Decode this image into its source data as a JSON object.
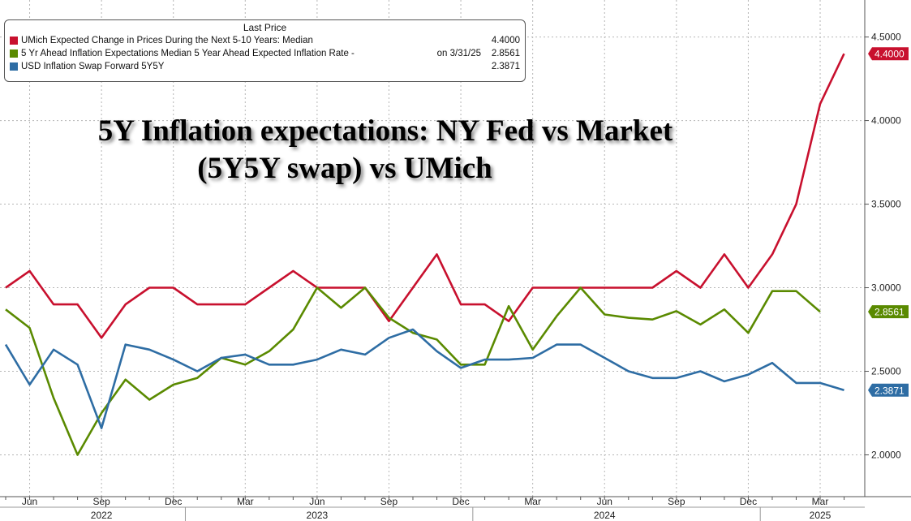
{
  "legend": {
    "title": "Last Price",
    "items": [
      {
        "name": "UMich Expected Change in Prices During the Next 5-10 Years: Median",
        "date": "",
        "value": "4.4000",
        "color": "#c8102e"
      },
      {
        "name": "5 Yr Ahead Inflation Expectations Median 5 Year Ahead Expected Inflation Rate -",
        "date": "on 3/31/25",
        "value": "2.8561",
        "color": "#5a8a00"
      },
      {
        "name": "USD Inflation Swap Forward 5Y5Y",
        "date": "",
        "value": "2.3871",
        "color": "#2e6da4"
      }
    ]
  },
  "headline": {
    "line1": "5Y Inflation expectations: NY Fed vs Market",
    "line2": "(5Y5Y swap) vs UMich"
  },
  "chart_data": {
    "type": "line",
    "title": "5Y Inflation expectations: NY Fed vs Market (5Y5Y swap) vs UMich",
    "xlabel": "",
    "ylabel": "",
    "ylim": [
      1.75,
      4.6
    ],
    "y_ticks": [
      "2.0000",
      "2.5000",
      "3.0000",
      "3.5000",
      "4.0000",
      "4.5000"
    ],
    "x_ticks": [
      {
        "label": "Jun",
        "month": 1
      },
      {
        "label": "Sep",
        "month": 4
      },
      {
        "label": "Dec",
        "month": 7
      },
      {
        "label": "Mar",
        "month": 10
      },
      {
        "label": "Jun",
        "month": 13
      },
      {
        "label": "Sep",
        "month": 16
      },
      {
        "label": "Dec",
        "month": 19
      },
      {
        "label": "Mar",
        "month": 22
      },
      {
        "label": "Jun",
        "month": 25
      },
      {
        "label": "Sep",
        "month": 28
      },
      {
        "label": "Dec",
        "month": 31
      },
      {
        "label": "Mar",
        "month": 34
      }
    ],
    "years": [
      {
        "label": "2022",
        "month": 4
      },
      {
        "label": "2023",
        "month": 13
      },
      {
        "label": "2024",
        "month": 25
      },
      {
        "label": "2025",
        "month": 34
      }
    ],
    "series": [
      {
        "name": "UMich Expected Change in Prices During the Next 5-10 Years: Median",
        "color": "#c8102e",
        "x": [
          0,
          1,
          2,
          3,
          4,
          5,
          6,
          7,
          8,
          9,
          10,
          11,
          12,
          13,
          14,
          15,
          16,
          17,
          18,
          19,
          20,
          21,
          22,
          23,
          24,
          25,
          26,
          27,
          28,
          29,
          30,
          31,
          32,
          33,
          34,
          35
        ],
        "values": [
          3.0,
          3.1,
          2.9,
          2.9,
          2.7,
          2.9,
          3.0,
          3.0,
          2.9,
          2.9,
          2.9,
          3.0,
          3.1,
          3.0,
          3.0,
          3.0,
          2.8,
          3.0,
          3.2,
          2.9,
          2.9,
          2.8,
          3.0,
          3.0,
          3.0,
          3.0,
          3.0,
          3.0,
          3.1,
          3.0,
          3.2,
          3.0,
          3.2,
          3.5,
          4.1,
          4.4
        ]
      },
      {
        "name": "5 Yr Ahead Inflation Expectations Median 5 Year Ahead Expected Inflation Rate -",
        "color": "#5a8a00",
        "x": [
          0,
          1,
          2,
          3,
          4,
          5,
          6,
          7,
          8,
          9,
          10,
          11,
          12,
          13,
          14,
          15,
          16,
          17,
          18,
          19,
          20,
          21,
          22,
          23,
          24,
          25,
          26,
          27,
          28,
          29,
          30,
          31,
          32,
          33,
          34
        ],
        "values": [
          2.87,
          2.76,
          2.34,
          2.0,
          2.25,
          2.45,
          2.33,
          2.42,
          2.46,
          2.58,
          2.54,
          2.62,
          2.75,
          3.0,
          2.88,
          3.0,
          2.82,
          2.73,
          2.69,
          2.54,
          2.54,
          2.89,
          2.63,
          2.83,
          3.0,
          2.84,
          2.82,
          2.81,
          2.86,
          2.78,
          2.87,
          2.73,
          2.98,
          2.98,
          2.8561
        ]
      },
      {
        "name": "USD Inflation Swap Forward 5Y5Y",
        "color": "#2e6da4",
        "x": [
          0,
          1,
          2,
          3,
          4,
          5,
          6,
          7,
          8,
          9,
          10,
          11,
          12,
          13,
          14,
          15,
          16,
          17,
          18,
          19,
          20,
          21,
          22,
          23,
          24,
          25,
          26,
          27,
          28,
          29,
          30,
          31,
          32,
          33,
          34,
          35
        ],
        "values": [
          2.66,
          2.42,
          2.63,
          2.54,
          2.16,
          2.66,
          2.63,
          2.57,
          2.5,
          2.58,
          2.6,
          2.54,
          2.54,
          2.57,
          2.63,
          2.6,
          2.7,
          2.75,
          2.62,
          2.52,
          2.57,
          2.57,
          2.58,
          2.66,
          2.66,
          2.58,
          2.5,
          2.46,
          2.46,
          2.5,
          2.44,
          2.48,
          2.55,
          2.43,
          2.43,
          2.3871
        ]
      }
    ]
  }
}
